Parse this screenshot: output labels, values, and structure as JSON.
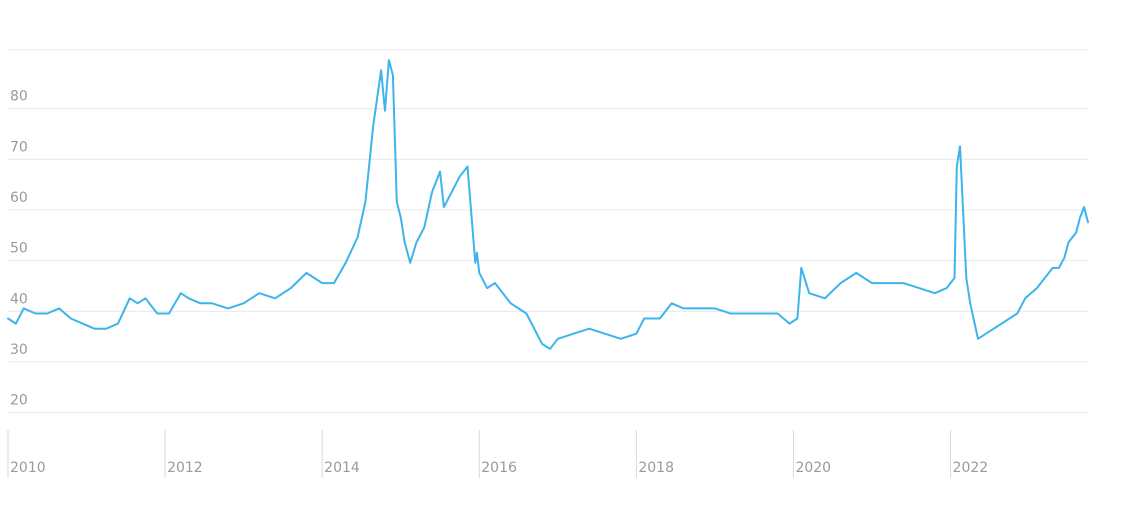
{
  "chart_data": {
    "type": "line",
    "title": "",
    "xlabel": "",
    "ylabel": "",
    "grid": true,
    "legend": "none",
    "xlim": [
      2010.0,
      2023.75
    ],
    "ylim": [
      15,
      90
    ],
    "y_ticks": [
      20,
      30,
      40,
      50,
      60,
      70,
      80
    ],
    "x_ticks": [
      2010,
      2012,
      2014,
      2016,
      2018,
      2020,
      2022
    ],
    "series": [
      {
        "color": "#3db4ec",
        "x": [
          2010.0,
          2010.1,
          2010.2,
          2010.35,
          2010.5,
          2010.65,
          2010.8,
          2010.95,
          2011.1,
          2011.25,
          2011.4,
          2011.55,
          2011.65,
          2011.75,
          2011.9,
          2012.05,
          2012.2,
          2012.3,
          2012.45,
          2012.6,
          2012.8,
          2013.0,
          2013.2,
          2013.4,
          2013.6,
          2013.8,
          2014.0,
          2014.15,
          2014.3,
          2014.45,
          2014.55,
          2014.65,
          2014.75,
          2014.8,
          2014.85,
          2014.9,
          2014.95,
          2015.0,
          2015.05,
          2015.12,
          2015.2,
          2015.3,
          2015.4,
          2015.5,
          2015.55,
          2015.65,
          2015.75,
          2015.85,
          2015.95,
          2015.97,
          2016.0,
          2016.1,
          2016.2,
          2016.4,
          2016.6,
          2016.8,
          2016.9,
          2017.0,
          2017.2,
          2017.4,
          2017.6,
          2017.8,
          2018.0,
          2018.1,
          2018.3,
          2018.45,
          2018.6,
          2018.8,
          2019.0,
          2019.2,
          2019.4,
          2019.6,
          2019.8,
          2019.95,
          2020.05,
          2020.1,
          2020.2,
          2020.4,
          2020.6,
          2020.8,
          2021.0,
          2021.2,
          2021.4,
          2021.6,
          2021.8,
          2021.95,
          2022.05,
          2022.08,
          2022.12,
          2022.2,
          2022.25,
          2022.35,
          2022.45,
          2022.55,
          2022.65,
          2022.75,
          2022.85,
          2022.95,
          2023.1,
          2023.2,
          2023.3,
          2023.38,
          2023.45,
          2023.5,
          2023.6,
          2023.65,
          2023.7,
          2023.75
        ],
        "y": [
          37,
          36,
          39,
          38,
          38,
          39,
          37,
          36,
          35,
          35,
          36,
          41,
          40,
          41,
          38,
          38,
          42,
          41,
          40,
          40,
          39,
          40,
          42,
          41,
          43,
          46,
          44,
          44,
          48,
          53,
          60,
          75,
          86,
          78,
          88,
          85,
          60,
          57,
          52,
          48,
          52,
          55,
          62,
          66,
          59,
          62,
          65,
          67,
          48,
          50,
          46,
          43,
          44,
          40,
          38,
          32,
          31,
          33,
          34,
          35,
          34,
          33,
          34,
          37,
          37,
          40,
          39,
          39,
          39,
          38,
          38,
          38,
          38,
          36,
          37,
          47,
          42,
          41,
          44,
          46,
          44,
          44,
          44,
          43,
          42,
          43,
          45,
          67,
          71,
          45,
          40,
          33,
          34,
          35,
          36,
          37,
          38,
          41,
          43,
          45,
          47,
          47,
          49,
          52,
          54,
          57,
          59,
          56
        ]
      }
    ]
  }
}
